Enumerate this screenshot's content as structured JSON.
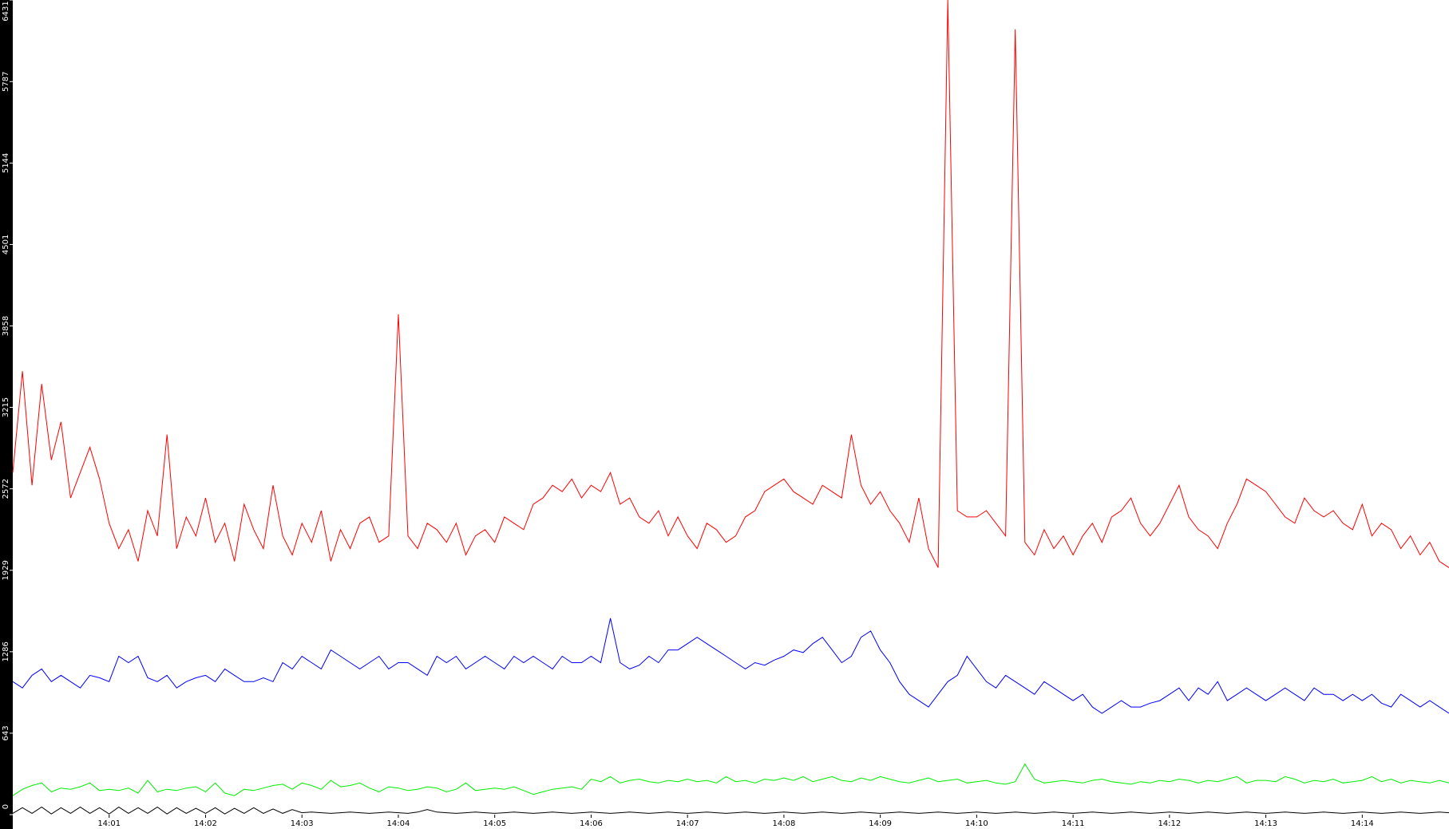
{
  "chart_data": {
    "type": "line",
    "xlim": [
      0,
      14.9
    ],
    "xticks": [
      {
        "value": 1,
        "label": "14:01"
      },
      {
        "value": 2,
        "label": "14:02"
      },
      {
        "value": 3,
        "label": "14:03"
      },
      {
        "value": 4,
        "label": "14:04"
      },
      {
        "value": 5,
        "label": "14:05"
      },
      {
        "value": 6,
        "label": "14:06"
      },
      {
        "value": 7,
        "label": "14:07"
      },
      {
        "value": 8,
        "label": "14:08"
      },
      {
        "value": 9,
        "label": "14:09"
      },
      {
        "value": 10,
        "label": "14:10"
      },
      {
        "value": 11,
        "label": "14:11"
      },
      {
        "value": 12,
        "label": "14:12"
      },
      {
        "value": 13,
        "label": "14:13"
      },
      {
        "value": 14,
        "label": "14:14"
      }
    ],
    "ylim": [
      0,
      6431
    ],
    "yticks": [
      0,
      643,
      1286,
      1929,
      2572,
      3215,
      3858,
      4501,
      5144,
      5787,
      6431
    ],
    "series": [
      {
        "color": "#ff0000",
        "values": [
          2700,
          3500,
          2600,
          3400,
          2800,
          3100,
          2500,
          2700,
          2900,
          2650,
          2300,
          2100,
          2250,
          2000,
          2400,
          2200,
          3000,
          2100,
          2350,
          2200,
          2500,
          2150,
          2300,
          2000,
          2450,
          2250,
          2100,
          2600,
          2200,
          2050,
          2300,
          2150,
          2400,
          2000,
          2250,
          2100,
          2300,
          2350,
          2150,
          2200,
          3950,
          2200,
          2100,
          2300,
          2250,
          2150,
          2300,
          2050,
          2200,
          2250,
          2150,
          2350,
          2300,
          2250,
          2450,
          2500,
          2600,
          2550,
          2650,
          2500,
          2600,
          2550,
          2700,
          2450,
          2500,
          2350,
          2300,
          2400,
          2200,
          2350,
          2200,
          2100,
          2300,
          2250,
          2150,
          2200,
          2350,
          2400,
          2550,
          2600,
          2650,
          2550,
          2500,
          2450,
          2600,
          2550,
          2500,
          3000,
          2600,
          2450,
          2550,
          2400,
          2300,
          2150,
          2500,
          2100,
          1950,
          6431,
          2400,
          2350,
          2350,
          2400,
          2300,
          2200,
          6200,
          2150,
          2050,
          2250,
          2100,
          2200,
          2050,
          2200,
          2300,
          2150,
          2350,
          2400,
          2500,
          2300,
          2200,
          2300,
          2450,
          2600,
          2350,
          2250,
          2200,
          2100,
          2300,
          2450,
          2650,
          2600,
          2550,
          2450,
          2350,
          2300,
          2500,
          2400,
          2350,
          2400,
          2300,
          2250,
          2450,
          2200,
          2300,
          2250,
          2100,
          2200,
          2050,
          2150,
          2000,
          1950
        ]
      },
      {
        "color": "#0000ff",
        "values": [
          1050,
          1000,
          1100,
          1150,
          1050,
          1100,
          1050,
          1000,
          1100,
          1080,
          1050,
          1250,
          1200,
          1250,
          1080,
          1050,
          1100,
          1000,
          1050,
          1080,
          1100,
          1050,
          1150,
          1100,
          1050,
          1050,
          1080,
          1050,
          1200,
          1150,
          1250,
          1200,
          1150,
          1300,
          1250,
          1200,
          1150,
          1200,
          1250,
          1150,
          1200,
          1200,
          1150,
          1100,
          1250,
          1200,
          1250,
          1150,
          1200,
          1250,
          1200,
          1150,
          1250,
          1200,
          1250,
          1200,
          1150,
          1250,
          1200,
          1200,
          1250,
          1200,
          1550,
          1200,
          1150,
          1180,
          1250,
          1200,
          1300,
          1300,
          1350,
          1400,
          1350,
          1300,
          1250,
          1200,
          1150,
          1200,
          1180,
          1220,
          1250,
          1300,
          1280,
          1350,
          1400,
          1300,
          1200,
          1250,
          1400,
          1450,
          1300,
          1200,
          1050,
          950,
          900,
          850,
          950,
          1050,
          1100,
          1250,
          1150,
          1050,
          1000,
          1100,
          1050,
          1000,
          950,
          1050,
          1000,
          950,
          900,
          950,
          850,
          800,
          850,
          900,
          850,
          850,
          880,
          900,
          950,
          1000,
          900,
          1000,
          950,
          1050,
          900,
          950,
          1000,
          950,
          900,
          950,
          1000,
          950,
          900,
          1000,
          950,
          950,
          900,
          950,
          900,
          950,
          880,
          850,
          950,
          900,
          850,
          900,
          850,
          800
        ]
      },
      {
        "color": "#00ee00",
        "values": [
          150,
          200,
          230,
          250,
          180,
          210,
          200,
          220,
          250,
          190,
          200,
          190,
          210,
          170,
          270,
          180,
          200,
          190,
          210,
          220,
          180,
          250,
          170,
          150,
          200,
          190,
          210,
          230,
          240,
          200,
          250,
          230,
          200,
          270,
          220,
          230,
          250,
          210,
          180,
          220,
          210,
          190,
          200,
          220,
          210,
          180,
          200,
          250,
          190,
          200,
          210,
          200,
          220,
          190,
          160,
          180,
          200,
          210,
          220,
          200,
          280,
          260,
          300,
          250,
          270,
          280,
          260,
          250,
          270,
          260,
          280,
          260,
          270,
          250,
          300,
          260,
          270,
          250,
          280,
          270,
          290,
          270,
          300,
          260,
          280,
          300,
          270,
          260,
          290,
          270,
          300,
          280,
          260,
          250,
          270,
          290,
          260,
          270,
          280,
          250,
          260,
          270,
          250,
          240,
          260,
          400,
          280,
          250,
          260,
          270,
          260,
          250,
          270,
          280,
          260,
          250,
          240,
          260,
          250,
          270,
          260,
          280,
          270,
          250,
          270,
          260,
          280,
          300,
          250,
          270,
          270,
          260,
          300,
          280,
          250,
          270,
          260,
          280,
          250,
          260,
          270,
          300,
          260,
          280,
          250,
          270,
          260,
          250,
          270,
          250
        ]
      },
      {
        "color": "#000000",
        "values": [
          10,
          55,
          10,
          60,
          5,
          55,
          10,
          60,
          10,
          55,
          5,
          60,
          10,
          55,
          10,
          60,
          5,
          55,
          10,
          50,
          10,
          55,
          5,
          50,
          10,
          55,
          10,
          45,
          10,
          40,
          15,
          20,
          15,
          10,
          15,
          20,
          15,
          10,
          15,
          20,
          15,
          10,
          20,
          40,
          20,
          15,
          10,
          15,
          20,
          15,
          10,
          15,
          20,
          15,
          10,
          15,
          20,
          15,
          10,
          15,
          20,
          15,
          10,
          15,
          20,
          15,
          10,
          15,
          20,
          15,
          10,
          15,
          20,
          15,
          10,
          15,
          20,
          15,
          10,
          15,
          20,
          15,
          10,
          15,
          20,
          15,
          10,
          15,
          20,
          15,
          10,
          15,
          20,
          15,
          10,
          15,
          20,
          15,
          10,
          15,
          20,
          15,
          10,
          15,
          20,
          15,
          10,
          15,
          20,
          15,
          10,
          15,
          20,
          15,
          10,
          15,
          20,
          15,
          10,
          15,
          20,
          15,
          10,
          15,
          20,
          15,
          10,
          15,
          20,
          15,
          10,
          15,
          20,
          15,
          10,
          15,
          20,
          15,
          10,
          15,
          20,
          15,
          10,
          15,
          20,
          15,
          10,
          15,
          20,
          15
        ]
      }
    ]
  }
}
